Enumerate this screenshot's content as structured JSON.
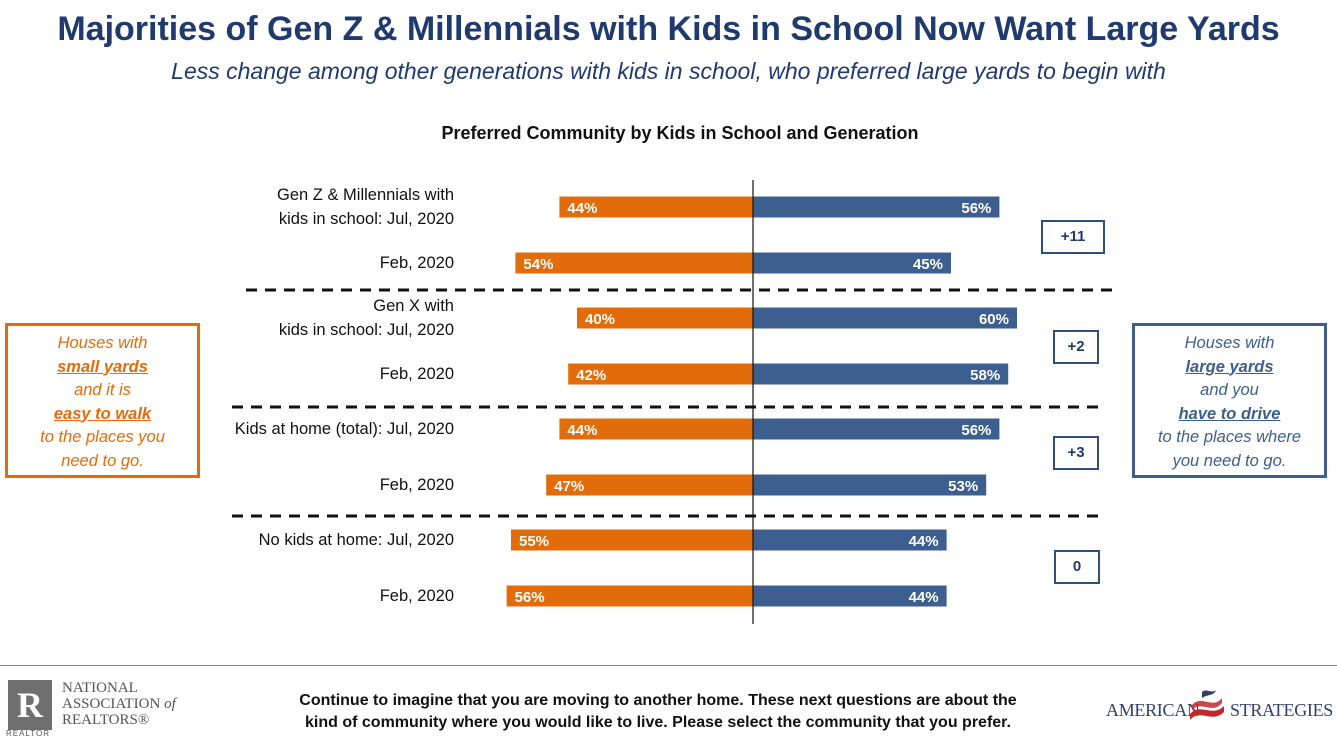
{
  "title": "Majorities of Gen Z & Millennials with Kids in School Now Want Large Yards",
  "subtitle": "Less change among other generations with kids in school, who preferred large yards to begin with",
  "colors": {
    "left": "#E36C0A",
    "right": "#3C5F8F",
    "title": "#1F3A6E"
  },
  "chart_data": {
    "type": "bar",
    "orientation": "horizontal-diverging",
    "title": "Preferred Community by Kids in School and Generation",
    "series": [
      {
        "name": "Houses with small yards and it is easy to walk to the places you need to go.",
        "values": [
          44,
          54,
          40,
          42,
          44,
          47,
          55,
          56
        ]
      },
      {
        "name": "Houses with large yards and you have to drive to the places where you need to go.",
        "values": [
          56,
          45,
          60,
          58,
          56,
          53,
          44,
          44
        ]
      }
    ],
    "categories": [
      "Gen Z & Millennials with kids in school: Jul, 2020",
      "Feb, 2020",
      "Gen X with kids in school: Jul, 2020",
      "Feb, 2020",
      "Kids at home (total): Jul, 2020",
      "Feb, 2020",
      "No kids at home: Jul, 2020",
      "Feb, 2020"
    ],
    "value_labels_left": [
      "44%",
      "54%",
      "40%",
      "42%",
      "44%",
      "47%",
      "55%",
      "56%"
    ],
    "value_labels_right": [
      "56%",
      "45%",
      "60%",
      "58%",
      "56%",
      "53%",
      "44%",
      "44%"
    ],
    "group_changes": [
      "+11",
      "+2",
      "+3",
      "0"
    ]
  },
  "row_labels": [
    {
      "line1": "Gen Z & Millennials with",
      "line2": "kids in school: Jul, 2020"
    },
    {
      "line1": "Feb, 2020",
      "line2": ""
    },
    {
      "line1": "Gen X with",
      "line2": "kids in school: Jul, 2020"
    },
    {
      "line1": "Feb, 2020",
      "line2": ""
    },
    {
      "line1": "Kids at home (total): Jul, 2020",
      "line2": ""
    },
    {
      "line1": "Feb, 2020",
      "line2": ""
    },
    {
      "line1": "No kids at home: Jul, 2020",
      "line2": ""
    },
    {
      "line1": "Feb, 2020",
      "line2": ""
    }
  ],
  "left_box": {
    "line1": "Houses with",
    "line2": "small yards",
    "line3": "and it is",
    "line4": "easy to walk",
    "line5": "to the places you",
    "line6": "need to go."
  },
  "right_box": {
    "line1": "Houses with",
    "line2": "large yards",
    "line3": "and you",
    "line4": "have to drive",
    "line5": "to the places where",
    "line6": "you need to go."
  },
  "footer": {
    "line1": "Continue to imagine that you are moving to another home. These next questions are about the",
    "line2": "kind of community where you would like to live. Please select the community that you prefer."
  },
  "logos": {
    "nar_mark": "R",
    "nar_sub": "REALTOR",
    "nar_line1": "NATIONAL",
    "nar_line2a": "ASSOCIATION",
    "nar_line2b": "of",
    "nar_line3": "REALTORS®",
    "as_left": "AMERICAN",
    "as_right": "STRATEGIES"
  }
}
